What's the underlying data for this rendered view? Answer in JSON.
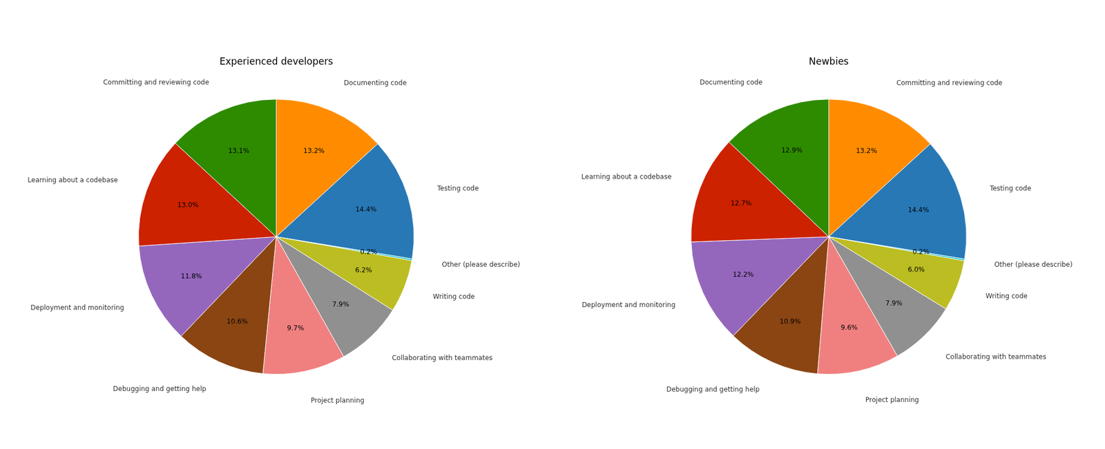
{
  "chart_data": [
    {
      "type": "pie",
      "title": "Experienced developers",
      "categories": [
        "Documenting code",
        "Testing code",
        "Other (please describe)",
        "Writing code",
        "Collaborating with teammates",
        "Project planning",
        "Debugging and getting help",
        "Deployment and monitoring",
        "Learning about a codebase",
        "Committing and reviewing code"
      ],
      "values": [
        13.2,
        14.4,
        0.2,
        6.2,
        7.9,
        9.7,
        10.6,
        11.8,
        13.0,
        13.1
      ],
      "value_labels": [
        "13.2%",
        "14.4%",
        "0.2%",
        "6.2%",
        "7.9%",
        "9.7%",
        "10.6%",
        "11.8%",
        "13.0%",
        "13.1%"
      ],
      "colors": [
        "#ff8c00",
        "#2878b5",
        "#17becf",
        "#bcbd22",
        "#909090",
        "#f08080",
        "#8b4513",
        "#9467bd",
        "#cc2200",
        "#2e8b00"
      ],
      "data_labels": true
    },
    {
      "type": "pie",
      "title": "Newbies",
      "categories": [
        "Committing and reviewing code",
        "Testing code",
        "Other (please describe)",
        "Writing code",
        "Collaborating with teammates",
        "Project planning",
        "Debugging and getting help",
        "Deployment and monitoring",
        "Learning about a codebase",
        "Documenting code"
      ],
      "values": [
        13.2,
        14.4,
        0.2,
        6.0,
        7.9,
        9.6,
        10.9,
        12.2,
        12.7,
        12.9
      ],
      "value_labels": [
        "13.2%",
        "14.4%",
        "0.2%",
        "6.0%",
        "7.9%",
        "9.6%",
        "10.9%",
        "12.2%",
        "12.7%",
        "12.9%"
      ],
      "colors": [
        "#ff8c00",
        "#2878b5",
        "#17becf",
        "#bcbd22",
        "#909090",
        "#f08080",
        "#8b4513",
        "#9467bd",
        "#cc2200",
        "#2e8b00"
      ],
      "data_labels": true
    }
  ]
}
